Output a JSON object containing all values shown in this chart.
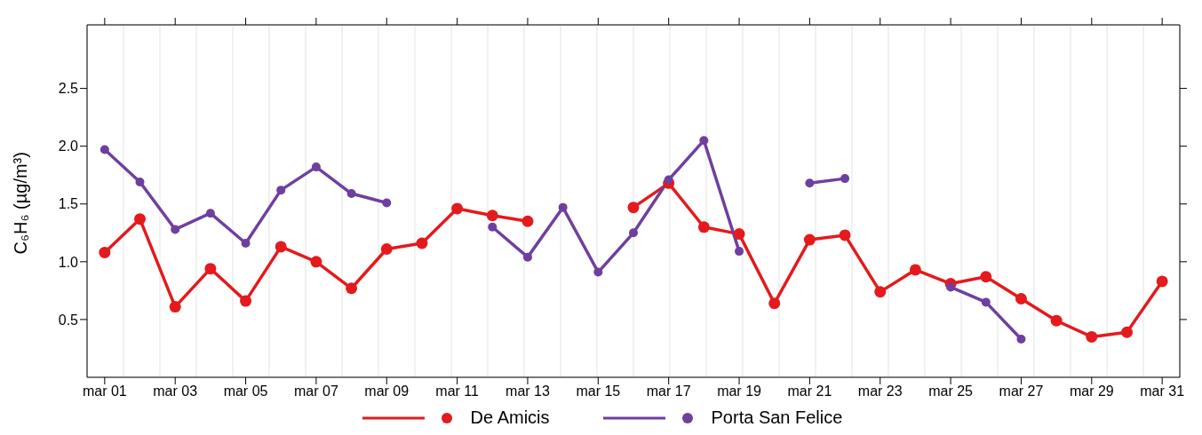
{
  "chart_data": {
    "type": "line",
    "ylabel": "C₆H₆ (µg/m³)",
    "x": [
      "--03-01",
      "--03-02",
      "--03-03",
      "--03-04",
      "--03-05",
      "--03-06",
      "--03-07",
      "--03-08",
      "--03-09",
      "--03-10",
      "--03-11",
      "--03-12",
      "--03-13",
      "--03-14",
      "--03-15",
      "--03-16",
      "--03-17",
      "--03-18",
      "--03-19",
      "--03-20",
      "--03-21",
      "--03-22",
      "--03-23",
      "--03-24",
      "--03-25",
      "--03-26",
      "--03-27",
      "--03-28",
      "--03-29",
      "--03-30",
      "--03-31"
    ],
    "series": [
      {
        "name": "De Amicis",
        "color": "#e41a1c",
        "values": [
          1.08,
          1.37,
          0.61,
          0.94,
          0.66,
          1.13,
          1.0,
          0.77,
          1.11,
          1.16,
          1.46,
          1.4,
          1.35,
          null,
          null,
          1.47,
          1.68,
          1.3,
          1.24,
          0.64,
          1.19,
          1.23,
          0.74,
          0.93,
          0.81,
          0.87,
          0.68,
          0.49,
          0.35,
          0.39,
          0.83
        ]
      },
      {
        "name": "Porta San Felice",
        "color": "#6f3fa0",
        "values": [
          1.97,
          1.69,
          1.28,
          1.42,
          1.16,
          1.62,
          1.82,
          1.59,
          1.51,
          null,
          null,
          1.3,
          1.04,
          1.47,
          0.91,
          1.25,
          1.71,
          2.05,
          1.09,
          null,
          1.68,
          1.72,
          null,
          null,
          0.78,
          0.65,
          0.33,
          null,
          null,
          null,
          null
        ]
      }
    ],
    "xlim": [
      "--02-28T12:00",
      "--03-31T12:00"
    ],
    "xticks": [
      {
        "value": "--03-01",
        "label": "mar 01"
      },
      {
        "value": "--03-03",
        "label": "mar 03"
      },
      {
        "value": "--03-05",
        "label": "mar 05"
      },
      {
        "value": "--03-07",
        "label": "mar 07"
      },
      {
        "value": "--03-09",
        "label": "mar 09"
      },
      {
        "value": "--03-11",
        "label": "mar 11"
      },
      {
        "value": "--03-13",
        "label": "mar 13"
      },
      {
        "value": "--03-15",
        "label": "mar 15"
      },
      {
        "value": "--03-17",
        "label": "mar 17"
      },
      {
        "value": "--03-19",
        "label": "mar 19"
      },
      {
        "value": "--03-21",
        "label": "mar 21"
      },
      {
        "value": "--03-23",
        "label": "mar 23"
      },
      {
        "value": "--03-25",
        "label": "mar 25"
      },
      {
        "value": "--03-27",
        "label": "mar 27"
      },
      {
        "value": "--03-29",
        "label": "mar 29"
      },
      {
        "value": "--03-31",
        "label": "mar 31"
      }
    ],
    "ylim": [
      0,
      3.05
    ],
    "yticks": [
      0.5,
      {
        "value": 1,
        "label": "1.0"
      },
      1.5,
      {
        "value": 2,
        "label": "2.0"
      },
      2.5
    ],
    "grid": true,
    "legend": "bottom",
    "marker": "circle",
    "line_style": "solid"
  }
}
